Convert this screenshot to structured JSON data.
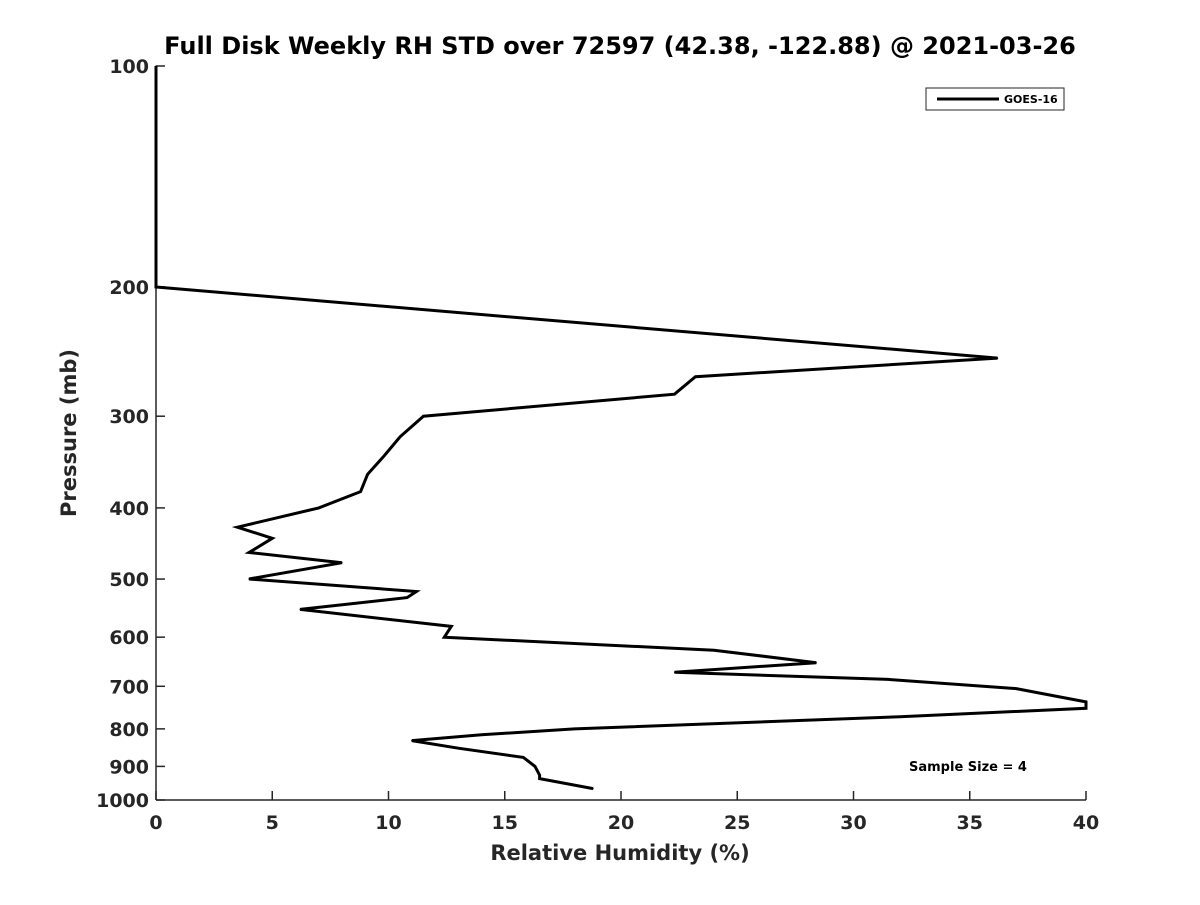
{
  "chart_data": {
    "type": "line",
    "title": "Full Disk Weekly RH STD over 72597 (42.38, -122.88) @ 2021-03-26",
    "xlabel": "Relative Humidity (%)",
    "ylabel": "Pressure (mb)",
    "xlim": [
      0,
      40
    ],
    "ylim": [
      100,
      1000
    ],
    "y_scale": "log",
    "y_reversed": true,
    "grid": false,
    "legend_position": "top-right",
    "x_ticks": [
      "0",
      "5",
      "10",
      "15",
      "20",
      "25",
      "30",
      "35",
      "40"
    ],
    "y_ticks": [
      "100",
      "200",
      "300",
      "400",
      "500",
      "600",
      "700",
      "800",
      "900",
      "1000"
    ],
    "annotation": "Sample Size = 4",
    "series": [
      {
        "name": "GOES-16",
        "color": "#000000",
        "points": [
          [
            0.0,
            100
          ],
          [
            0.0,
            150
          ],
          [
            0.0,
            200
          ],
          [
            36.2,
            250
          ],
          [
            23.2,
            265
          ],
          [
            22.3,
            280
          ],
          [
            11.5,
            300
          ],
          [
            10.5,
            320
          ],
          [
            9.8,
            340
          ],
          [
            9.1,
            360
          ],
          [
            8.8,
            380
          ],
          [
            7.0,
            400
          ],
          [
            3.5,
            425
          ],
          [
            5.0,
            440
          ],
          [
            4.0,
            460
          ],
          [
            8.0,
            475
          ],
          [
            4.0,
            500
          ],
          [
            11.2,
            520
          ],
          [
            10.8,
            530
          ],
          [
            6.2,
            550
          ],
          [
            12.7,
            580
          ],
          [
            12.4,
            600
          ],
          [
            24.0,
            625
          ],
          [
            28.4,
            650
          ],
          [
            22.3,
            670
          ],
          [
            31.5,
            685
          ],
          [
            37.0,
            705
          ],
          [
            39.0,
            725
          ],
          [
            40.0,
            735
          ],
          [
            40.0,
            750
          ],
          [
            32.0,
            770
          ],
          [
            18.0,
            800
          ],
          [
            14.0,
            815
          ],
          [
            11.0,
            830
          ],
          [
            13.0,
            850
          ],
          [
            15.8,
            875
          ],
          [
            16.3,
            900
          ],
          [
            16.5,
            925
          ],
          [
            16.5,
            935
          ],
          [
            18.8,
            965
          ]
        ]
      }
    ]
  }
}
